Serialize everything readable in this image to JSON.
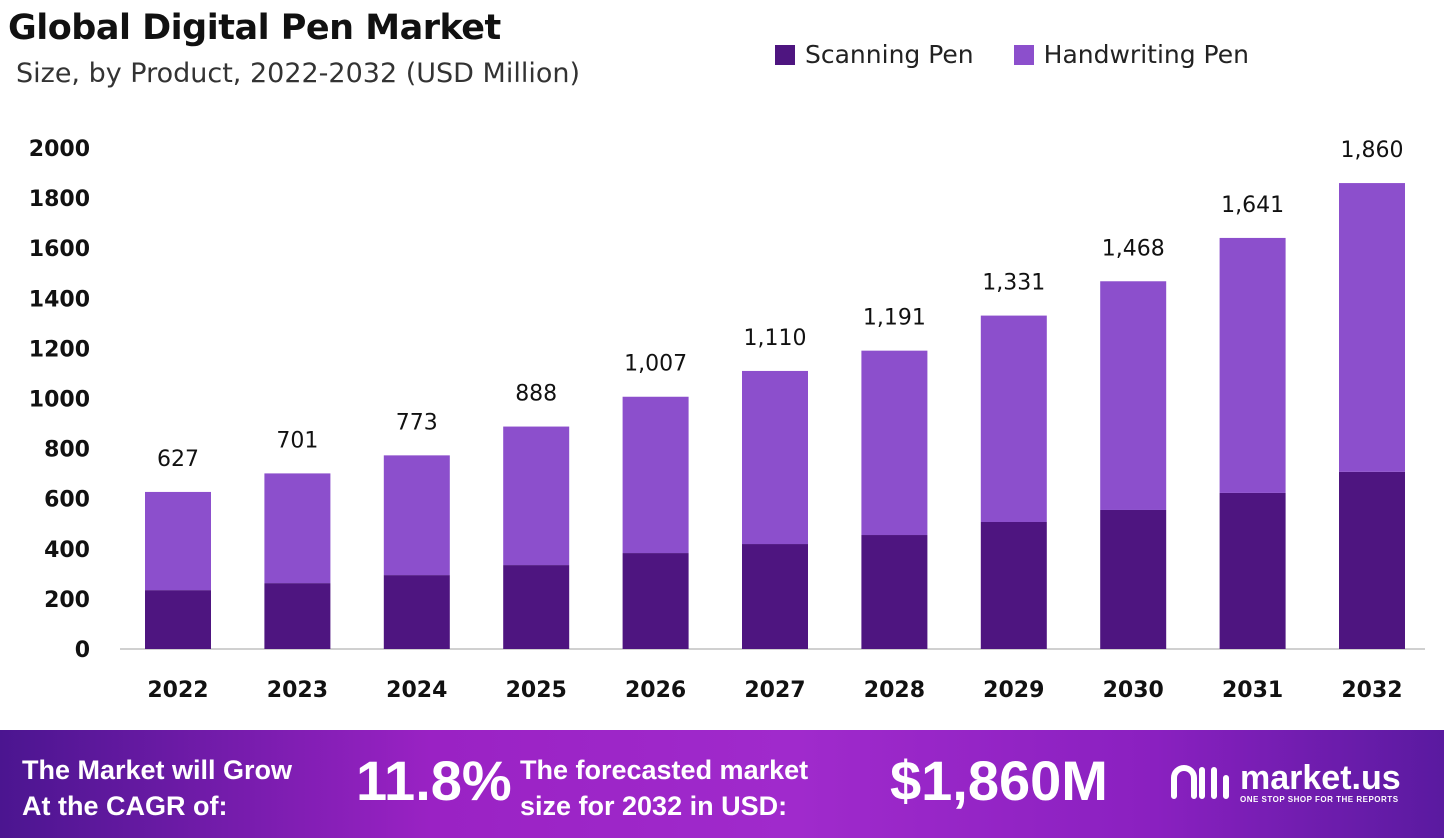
{
  "chart_data": {
    "type": "bar",
    "stacked": true,
    "title": "Global Digital Pen Market",
    "subtitle": "Size, by Product, 2022-2032 (USD Million)",
    "categories": [
      "2022",
      "2023",
      "2024",
      "2025",
      "2026",
      "2027",
      "2028",
      "2029",
      "2030",
      "2031",
      "2032"
    ],
    "series": [
      {
        "name": "Scanning Pen",
        "color": "#4e1580",
        "values": [
          235,
          263,
          295,
          335,
          383,
          419,
          455,
          507,
          555,
          623,
          707
        ]
      },
      {
        "name": "Handwriting Pen",
        "color": "#8c4fcc",
        "values": [
          392,
          438,
          478,
          553,
          624,
          691,
          736,
          824,
          913,
          1018,
          1153
        ]
      }
    ],
    "totals": [
      627,
      701,
      773,
      888,
      1007,
      1110,
      1191,
      1331,
      1468,
      1641,
      1860
    ],
    "total_labels": [
      "627",
      "701",
      "773",
      "888",
      "1,007",
      "1,110",
      "1,191",
      "1,331",
      "1,468",
      "1,641",
      "1,860"
    ],
    "ylim": [
      0,
      2000
    ],
    "yticks": [
      0,
      200,
      400,
      600,
      800,
      1000,
      1200,
      1400,
      1600,
      1800,
      2000
    ],
    "grid": false,
    "legend": "top-right"
  },
  "footer": {
    "cagr_label_1": "The Market will Grow",
    "cagr_label_2": "At the CAGR of:",
    "cagr_value": "11.8%",
    "forecast_label_1": "The forecasted market",
    "forecast_label_2": "size for 2032 in USD:",
    "forecast_value": "$1,860M",
    "brand": "market.us",
    "tagline": "ONE STOP SHOP FOR THE REPORTS"
  }
}
